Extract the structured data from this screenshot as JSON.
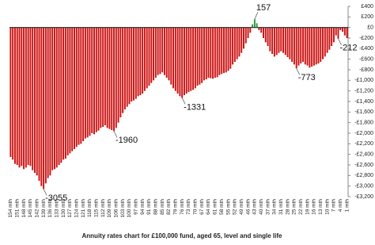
{
  "chart_data": {
    "type": "bar",
    "title": "Annuity rates chart for £100,000 fund, aged 65, level and single life",
    "categories": [
      "154 mth",
      null,
      null,
      "151 mth",
      null,
      null,
      "148 mth",
      null,
      null,
      "145 mth",
      null,
      null,
      "142 mth",
      null,
      null,
      "139 mth",
      null,
      null,
      "136 mth",
      null,
      null,
      "133 mth",
      null,
      null,
      "130 mth",
      null,
      null,
      "127 mth",
      null,
      null,
      "124 mth",
      null,
      null,
      "121 mth",
      null,
      null,
      "118 mth",
      null,
      null,
      "115 mth",
      null,
      null,
      "112 mth",
      null,
      null,
      "109 mth",
      null,
      null,
      "106 mth",
      null,
      null,
      "103 mth",
      null,
      null,
      "100 mth",
      null,
      null,
      "97 mth",
      null,
      null,
      "94 mth",
      null,
      null,
      "91 mth",
      null,
      null,
      "88 mth",
      null,
      null,
      "85 mth",
      null,
      null,
      "82 mth",
      null,
      null,
      "79 mth",
      null,
      null,
      "76 mth",
      null,
      null,
      "73 mth",
      null,
      null,
      "70 mth",
      null,
      null,
      "67 mth",
      null,
      null,
      "64 mth",
      null,
      null,
      "61 mth",
      null,
      null,
      "58 mth",
      null,
      null,
      "55 mth",
      null,
      null,
      "52 mth",
      null,
      null,
      "49 mth",
      null,
      null,
      "46 mth",
      null,
      null,
      "43 mth",
      null,
      null,
      "40 mth",
      null,
      null,
      "37 mth",
      null,
      null,
      "34 mth",
      null,
      null,
      "31 mth",
      null,
      null,
      "28 mth",
      null,
      null,
      "25 mth",
      null,
      null,
      "22 mth",
      null,
      null,
      "19 mth",
      null,
      null,
      "16 mth",
      null,
      null,
      "13 mth",
      null,
      null,
      "10 mth",
      null,
      null,
      "7 mth",
      null,
      null,
      "4 mth",
      null,
      null,
      "1 mth"
    ],
    "values": [
      -2450,
      -2500,
      -2580,
      -2600,
      -2650,
      -2620,
      -2680,
      -2650,
      -2600,
      -2620,
      -2700,
      -2750,
      -2800,
      -2900,
      -3000,
      -3055,
      -2950,
      -2850,
      -2800,
      -2700,
      -2680,
      -2650,
      -2600,
      -2560,
      -2500,
      -2480,
      -2420,
      -2380,
      -2340,
      -2300,
      -2260,
      -2220,
      -2200,
      -2150,
      -2100,
      -2080,
      -2050,
      -2000,
      -2020,
      -1980,
      -1950,
      -1900,
      -1880,
      -1850,
      -1900,
      -1920,
      -1940,
      -1960,
      -1900,
      -1800,
      -1700,
      -1620,
      -1550,
      -1500,
      -1450,
      -1400,
      -1380,
      -1350,
      -1300,
      -1280,
      -1250,
      -1200,
      -1150,
      -1100,
      -1050,
      -1000,
      -950,
      -900,
      -880,
      -850,
      -900,
      -950,
      -1000,
      -1080,
      -1150,
      -1200,
      -1250,
      -1300,
      -1331,
      -1280,
      -1250,
      -1220,
      -1200,
      -1180,
      -1150,
      -1100,
      -1080,
      -1050,
      -1000,
      -980,
      -950,
      -960,
      -970,
      -950,
      -940,
      -900,
      -880,
      -860,
      -850,
      -820,
      -780,
      -700,
      -650,
      -600,
      -550,
      -480,
      -400,
      -300,
      -200,
      -100,
      60,
      157,
      80,
      -50,
      -100,
      -200,
      -280,
      -350,
      -450,
      -500,
      -550,
      -520,
      -480,
      -450,
      -480,
      -520,
      -560,
      -600,
      -650,
      -700,
      -773,
      -720,
      -680,
      -650,
      -700,
      -720,
      -760,
      -740,
      -720,
      -700,
      -680,
      -650,
      -600,
      -550,
      -480,
      -420,
      -350,
      -280,
      -150,
      -212,
      -50,
      -80,
      -150,
      -200
    ],
    "value_labels": [
      null,
      null,
      null,
      null,
      null,
      null,
      null,
      null,
      null,
      null,
      null,
      null,
      null,
      null,
      null,
      "-3055",
      null,
      null,
      null,
      null,
      null,
      null,
      null,
      null,
      null,
      null,
      null,
      null,
      null,
      null,
      null,
      null,
      null,
      null,
      null,
      null,
      null,
      null,
      null,
      null,
      null,
      null,
      null,
      null,
      null,
      null,
      null,
      "-1960",
      null,
      null,
      null,
      null,
      null,
      null,
      null,
      null,
      null,
      null,
      null,
      null,
      null,
      null,
      null,
      null,
      null,
      null,
      null,
      null,
      null,
      null,
      null,
      null,
      null,
      null,
      null,
      null,
      null,
      null,
      "-1331",
      null,
      null,
      null,
      null,
      null,
      null,
      null,
      null,
      null,
      null,
      null,
      null,
      null,
      null,
      null,
      null,
      null,
      null,
      null,
      null,
      null,
      null,
      null,
      null,
      null,
      null,
      null,
      null,
      null,
      null,
      null,
      null,
      "157",
      null,
      null,
      null,
      null,
      null,
      null,
      null,
      null,
      null,
      null,
      null,
      null,
      null,
      null,
      null,
      null,
      null,
      null,
      "-773",
      null,
      null,
      null,
      null,
      null,
      null,
      null,
      null,
      null,
      null,
      null,
      null,
      null,
      null,
      null,
      null,
      null,
      null,
      "-212",
      null,
      null,
      null,
      null
    ],
    "color": "#cc1111",
    "positive_color": "#2a9a3a",
    "ylim": [
      -3200,
      400
    ],
    "yticks": [
      {
        "value": 400,
        "label": "£400"
      },
      {
        "value": 200,
        "label": "£200"
      },
      {
        "value": 0,
        "label": "£0"
      },
      {
        "value": -200,
        "label": "-£200"
      },
      {
        "value": -400,
        "label": "-£400"
      },
      {
        "value": -600,
        "label": "-£600"
      },
      {
        "value": -800,
        "label": "-£800"
      },
      {
        "value": -1000,
        "label": "-£1,000"
      },
      {
        "value": -1200,
        "label": "-£1,200"
      },
      {
        "value": -1400,
        "label": "-£1,400"
      },
      {
        "value": -1600,
        "label": "-£1,600"
      },
      {
        "value": -1800,
        "label": "-£1,800"
      },
      {
        "value": -2000,
        "label": "-£2,000"
      },
      {
        "value": -2200,
        "label": "-£2,200"
      },
      {
        "value": -2400,
        "label": "-£2,400"
      },
      {
        "value": -2600,
        "label": "-£2,600"
      },
      {
        "value": -2800,
        "label": "-£2,800"
      },
      {
        "value": -3000,
        "label": "-£3,000"
      },
      {
        "value": -3200,
        "label": "-£3,200"
      }
    ],
    "grid": false
  }
}
